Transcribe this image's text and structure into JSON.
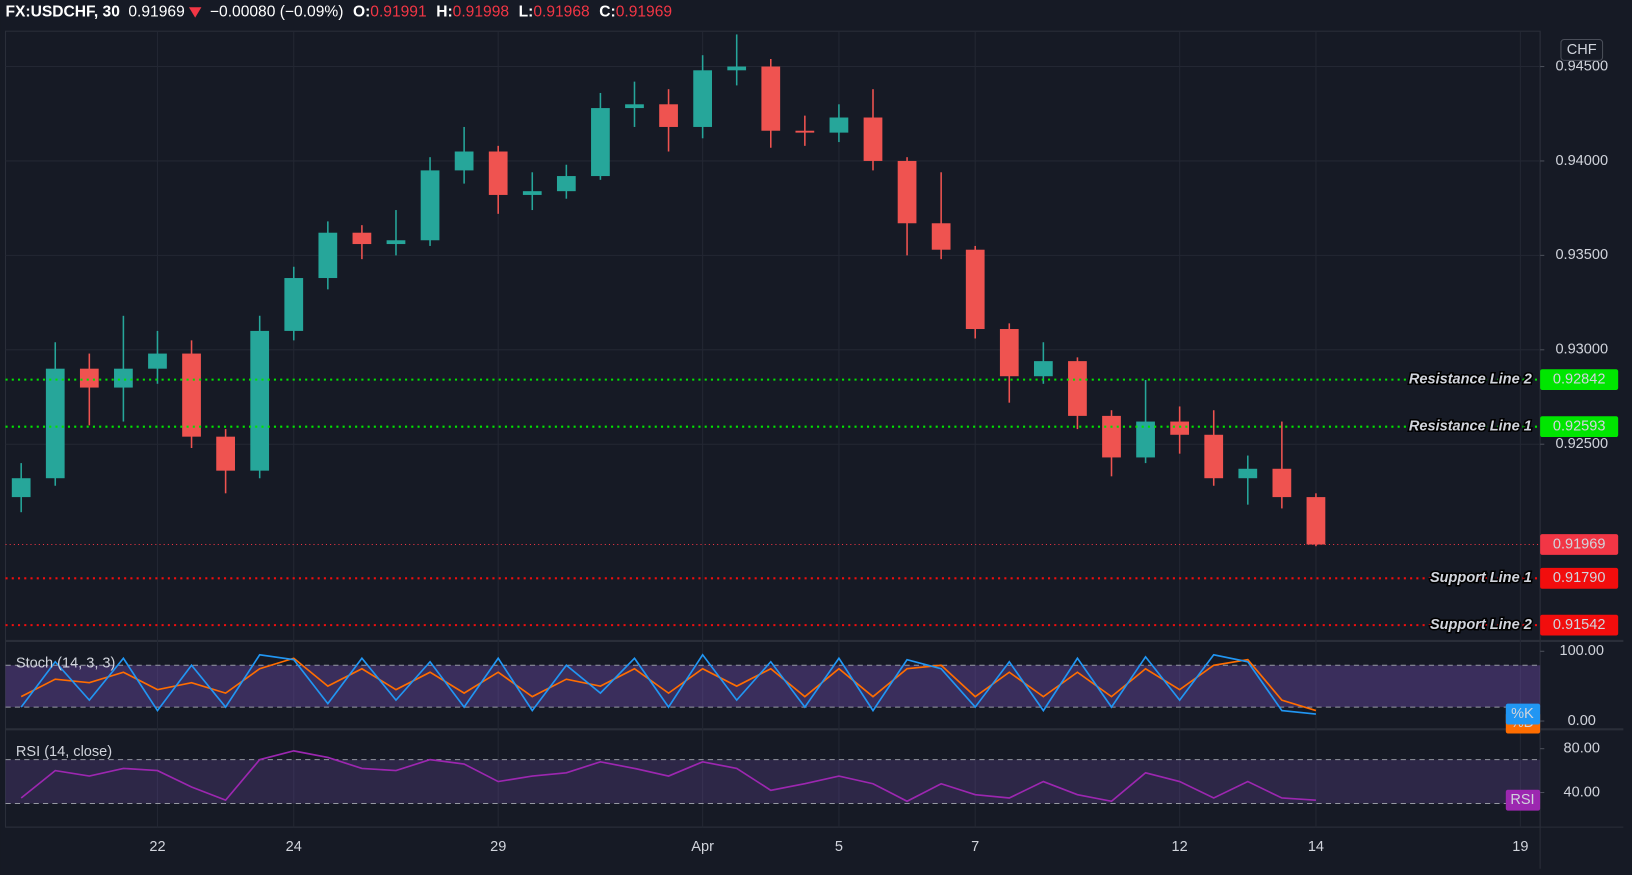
{
  "chart_data": [
    {
      "type": "candlestick",
      "symbol": "FX:USDCHF, 30",
      "last": "0.91969",
      "change": "−0.00080 (−0.09%)",
      "ohlc_header": [
        {
          "key": "O:",
          "text": "0.91991"
        },
        {
          "key": "H:",
          "text": "0.91998"
        },
        {
          "key": "L:",
          "text": "0.91968"
        },
        {
          "key": "C:",
          "text": "0.91969"
        }
      ],
      "currency": "CHF",
      "x": [
        -2,
        -1.5,
        -1,
        -0.5,
        0,
        0.5,
        1,
        1.5,
        2,
        2.5,
        3,
        3.5,
        4,
        4.5,
        5,
        5.5,
        6,
        6.5,
        7,
        7.5,
        8,
        8.5,
        9,
        9.5,
        10,
        10.5,
        11,
        11.5,
        12,
        12.5,
        13,
        13.5,
        14,
        14.5,
        15,
        15.5,
        16,
        16.5,
        17
      ],
      "open": [
        0.9222,
        0.9232,
        0.929,
        0.928,
        0.929,
        0.9298,
        0.9254,
        0.9236,
        0.931,
        0.9338,
        0.9362,
        0.9356,
        0.9358,
        0.9395,
        0.9405,
        0.9382,
        0.9384,
        0.9392,
        0.9428,
        0.943,
        0.9418,
        0.9448,
        0.945,
        0.9416,
        0.9415,
        0.9423,
        0.94,
        0.9367,
        0.9353,
        0.9311,
        0.9286,
        0.9294,
        0.9265,
        0.9243,
        0.9262,
        0.9255,
        0.9232,
        0.9237,
        0.9222
      ],
      "high": [
        0.924,
        0.9304,
        0.9298,
        0.9318,
        0.931,
        0.9305,
        0.9258,
        0.9318,
        0.9344,
        0.9368,
        0.9366,
        0.9374,
        0.9402,
        0.9418,
        0.9408,
        0.9394,
        0.9398,
        0.9436,
        0.9442,
        0.9438,
        0.9456,
        0.9467,
        0.9454,
        0.9424,
        0.943,
        0.9438,
        0.9402,
        0.9394,
        0.9355,
        0.9314,
        0.9304,
        0.9296,
        0.9268,
        0.9284,
        0.927,
        0.9268,
        0.9244,
        0.9262,
        0.9224
      ],
      "low": [
        0.9214,
        0.9228,
        0.926,
        0.9262,
        0.9282,
        0.9248,
        0.9224,
        0.9232,
        0.9305,
        0.9332,
        0.9348,
        0.935,
        0.9355,
        0.9388,
        0.9372,
        0.9374,
        0.938,
        0.939,
        0.9418,
        0.9405,
        0.9412,
        0.944,
        0.9407,
        0.9408,
        0.941,
        0.9395,
        0.935,
        0.9348,
        0.9306,
        0.9272,
        0.9282,
        0.9258,
        0.9233,
        0.924,
        0.9245,
        0.9228,
        0.9218,
        0.9216,
        0.9196
      ],
      "close": [
        0.9232,
        0.929,
        0.928,
        0.929,
        0.9298,
        0.9254,
        0.9236,
        0.931,
        0.9338,
        0.9362,
        0.9356,
        0.9358,
        0.9395,
        0.9405,
        0.9382,
        0.9384,
        0.9392,
        0.9428,
        0.943,
        0.9418,
        0.9448,
        0.945,
        0.9416,
        0.9415,
        0.9423,
        0.94,
        0.9367,
        0.9353,
        0.9311,
        0.9286,
        0.9294,
        0.9265,
        0.9243,
        0.9262,
        0.9255,
        0.9232,
        0.9237,
        0.9222,
        0.91969
      ],
      "up_color": "#26a69a",
      "down_color": "#ef5350",
      "xlim": [
        -2.23,
        20.29
      ],
      "ylim": [
        0.91464,
        0.94687
      ],
      "xticks": [
        {
          "value": 0,
          "label": "22"
        },
        {
          "value": 2,
          "label": "24"
        },
        {
          "value": 5,
          "label": "29"
        },
        {
          "value": 8,
          "label": "Apr"
        },
        {
          "value": 10,
          "label": "5"
        },
        {
          "value": 12,
          "label": "7"
        },
        {
          "value": 15,
          "label": "12"
        },
        {
          "value": 17,
          "label": "14"
        },
        {
          "value": 20,
          "label": "19"
        }
      ],
      "yticks": [
        {
          "value": 0.925,
          "label": "0.92500"
        },
        {
          "value": 0.93,
          "label": "0.93000"
        },
        {
          "value": 0.935,
          "label": "0.93500"
        },
        {
          "value": 0.94,
          "label": "0.94000"
        },
        {
          "value": 0.945,
          "label": "0.94500"
        }
      ],
      "grid": true,
      "hlines": [
        {
          "name": "Resistance Line 2",
          "value": 0.92842,
          "label": "0.92842",
          "color": "#00e600",
          "label_color": "#000000"
        },
        {
          "name": "Resistance Line 1",
          "value": 0.92593,
          "label": "0.92593",
          "color": "#00e600",
          "label_color": "#000000"
        },
        {
          "name": "Support Line 1",
          "value": 0.9179,
          "label": "0.91790",
          "color": "#f20d0d",
          "label_color": "#ffffff"
        },
        {
          "name": "Support Line 2",
          "value": 0.91542,
          "label": "0.91542",
          "color": "#f20d0d",
          "label_color": "#ffffff"
        }
      ],
      "last_price": {
        "value": 0.91969,
        "color": "#f23645"
      }
    },
    {
      "type": "line",
      "title": "Stoch (14, 3, 3)",
      "x": [
        -2,
        -1.5,
        -1,
        -0.5,
        0,
        0.5,
        1,
        1.5,
        2,
        2.5,
        3,
        3.5,
        4,
        4.5,
        5,
        5.5,
        6,
        6.5,
        7,
        7.5,
        8,
        8.5,
        9,
        9.5,
        10,
        10.5,
        11,
        11.5,
        12,
        12.5,
        13,
        13.5,
        14,
        14.5,
        15,
        15.5,
        16,
        16.5,
        17
      ],
      "series": [
        {
          "name": "%K",
          "color": "#2196f3",
          "values": [
            20,
            85,
            30,
            90,
            15,
            80,
            20,
            95,
            88,
            25,
            90,
            30,
            85,
            20,
            90,
            15,
            80,
            40,
            90,
            20,
            95,
            30,
            85,
            20,
            90,
            15,
            88,
            75,
            20,
            85,
            15,
            90,
            20,
            92,
            30,
            95,
            85,
            15,
            10
          ]
        },
        {
          "name": "%D",
          "color": "#ff6d00",
          "values": [
            35,
            60,
            55,
            70,
            45,
            55,
            40,
            75,
            90,
            50,
            75,
            45,
            70,
            40,
            70,
            35,
            60,
            50,
            75,
            40,
            75,
            50,
            75,
            35,
            75,
            35,
            75,
            80,
            35,
            70,
            35,
            70,
            35,
            75,
            45,
            80,
            88,
            30,
            15
          ]
        }
      ],
      "bands": [
        20,
        80
      ],
      "band_color": "rgba(126,87,194,0.35)",
      "xlim": [
        -2.23,
        20.29
      ],
      "ylim": [
        -10.4,
        113.4
      ],
      "yticks": [
        {
          "value": 100,
          "label": "100.00"
        },
        {
          "value": 0,
          "label": "0.00"
        }
      ]
    },
    {
      "type": "line",
      "title": "RSI (14, close)",
      "x": [
        -2,
        -1.5,
        -1,
        -0.5,
        0,
        0.5,
        1,
        1.5,
        2,
        2.5,
        3,
        3.5,
        4,
        4.5,
        5,
        5.5,
        6,
        6.5,
        7,
        7.5,
        8,
        8.5,
        9,
        9.5,
        10,
        10.5,
        11,
        11.5,
        12,
        12.5,
        13,
        13.5,
        14,
        14.5,
        15,
        15.5,
        16,
        16.5,
        17
      ],
      "series": [
        {
          "name": "RSI",
          "color": "#9c27b0",
          "values": [
            35,
            60,
            55,
            62,
            60,
            45,
            33,
            70,
            78,
            72,
            62,
            60,
            70,
            66,
            50,
            55,
            58,
            68,
            62,
            55,
            68,
            62,
            42,
            48,
            55,
            48,
            32,
            48,
            38,
            35,
            50,
            38,
            32,
            58,
            50,
            35,
            50,
            35,
            33
          ]
        }
      ],
      "bands": [
        30,
        70
      ],
      "band_color": "rgba(126,87,194,0.22)",
      "xlim": [
        -2.23,
        20.29
      ],
      "ylim": [
        8.4,
        96.7
      ],
      "yticks": [
        {
          "value": 80,
          "label": "80.00"
        },
        {
          "value": 40,
          "label": "40.00"
        }
      ]
    }
  ]
}
